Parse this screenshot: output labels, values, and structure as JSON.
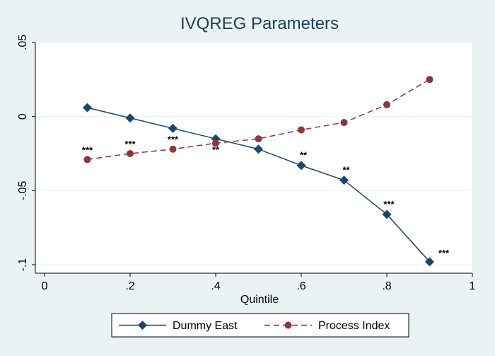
{
  "chart_data": {
    "type": "line",
    "title": "IVQREG Parameters",
    "xlabel": "Quintile",
    "ylabel": "",
    "xlim": [
      0,
      1
    ],
    "ylim": [
      -0.1,
      0.05
    ],
    "xticks": [
      {
        "value": 0,
        "label": "0"
      },
      {
        "value": 0.2,
        "label": ".2"
      },
      {
        "value": 0.4,
        "label": ".4"
      },
      {
        "value": 0.6,
        "label": ".6"
      },
      {
        "value": 0.8,
        "label": ".8"
      },
      {
        "value": 1,
        "label": "1"
      }
    ],
    "yticks": [
      {
        "value": 0.05,
        "label": ".05"
      },
      {
        "value": 0,
        "label": "0"
      },
      {
        "value": -0.05,
        "label": "-.05"
      },
      {
        "value": -0.1,
        "label": "-.1"
      }
    ],
    "grid": "horizontal",
    "legend_position": "bottom",
    "x": [
      0.1,
      0.2,
      0.3,
      0.4,
      0.5,
      0.6,
      0.7,
      0.8,
      0.9
    ],
    "series": [
      {
        "name": "Dummy East",
        "color": "#1a476f",
        "marker": "diamond",
        "line_style": "solid",
        "values": [
          0.006,
          -0.001,
          -0.008,
          -0.015,
          -0.022,
          -0.033,
          -0.043,
          -0.066,
          -0.098
        ],
        "annotations": [
          "",
          "",
          "",
          "**",
          "",
          "**",
          "**",
          "***",
          "***"
        ]
      },
      {
        "name": "Process Index",
        "color": "#90353b",
        "marker": "circle",
        "line_style": "dashed",
        "values": [
          -0.029,
          -0.025,
          -0.022,
          -0.018,
          -0.015,
          -0.009,
          -0.004,
          0.008,
          0.025
        ],
        "annotations": [
          "***",
          "***",
          "***",
          "",
          "",
          "",
          "",
          "",
          ""
        ]
      }
    ]
  }
}
